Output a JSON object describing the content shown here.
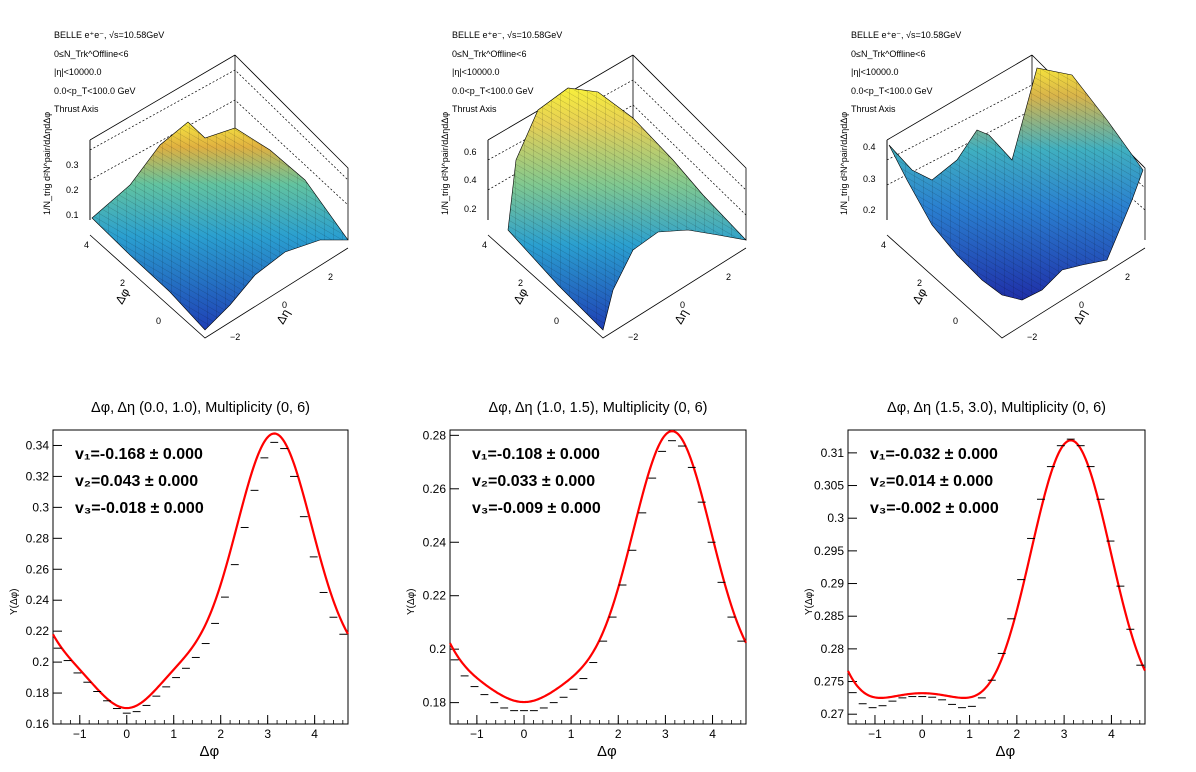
{
  "colors": {
    "fit_line": "#ff0000",
    "points": "#000000",
    "surface_low": "#2a3fb8",
    "surface_high": "#f5ef3a"
  },
  "surfaces": [
    {
      "info": [
        "BELLE e⁺e⁻, √s=10.58GeV",
        "0≤N_Trk^Offline<6",
        "|η|<10000.0",
        "0.0<p_T<100.0 GeV",
        "Thrust Axis"
      ],
      "zlabel": "1/N_trig d²N^pair/dΔηdΔφ",
      "zticks": [
        "0.1",
        "0.2",
        "0.3"
      ],
      "phi_label": "Δφ",
      "phi_ticks": [
        "0",
        "2",
        "4"
      ],
      "eta_label": "Δη",
      "eta_ticks": [
        "−2",
        "0",
        "2"
      ]
    },
    {
      "info": [
        "BELLE e⁺e⁻, √s=10.58GeV",
        "0≤N_Trk^Offline<6",
        "|η|<10000.0",
        "0.0<p_T<100.0 GeV",
        "Thrust Axis"
      ],
      "zlabel": "1/N_trig d²N^pair/dΔηdΔφ",
      "zticks": [
        "0.2",
        "0.4",
        "0.6"
      ],
      "phi_label": "Δφ",
      "phi_ticks": [
        "0",
        "2",
        "4"
      ],
      "eta_label": "Δη",
      "eta_ticks": [
        "−2",
        "0",
        "2"
      ]
    },
    {
      "info": [
        "BELLE e⁺e⁻, √s=10.58GeV",
        "0≤N_Trk^Offline<6",
        "|η|<10000.0",
        "0.0<p_T<100.0 GeV",
        "Thrust Axis"
      ],
      "zlabel": "1/N_trig d²N^pair/dΔηdΔφ",
      "zticks": [
        "0.2",
        "0.3",
        "0.4"
      ],
      "phi_label": "Δφ",
      "phi_ticks": [
        "0",
        "2",
        "4"
      ],
      "eta_label": "Δη",
      "eta_ticks": [
        "−2",
        "0",
        "2"
      ]
    }
  ],
  "chart_data": [
    {
      "type": "line",
      "title": "Δφ, Δη (0.0, 1.0), Multiplicity (0, 6)",
      "xlabel": "Δφ",
      "ylabel": "Y(Δφ)",
      "xlim": [
        -1.57,
        4.71
      ],
      "ylim": [
        0.16,
        0.35
      ],
      "xticks": [
        -1,
        0,
        1,
        2,
        3,
        4
      ],
      "yticks": [
        0.16,
        0.18,
        0.2,
        0.22,
        0.24,
        0.26,
        0.28,
        0.3,
        0.32,
        0.34
      ],
      "fit": {
        "a0": 0.2385,
        "v1": -0.168,
        "v2": 0.043,
        "v3": -0.018
      },
      "fit_text": [
        "v₁=-0.168 ± 0.000",
        "v₂=0.043 ± 0.000",
        "v₃=-0.018 ± 0.000"
      ],
      "series": [
        {
          "name": "",
          "x": [
            -1.47,
            -1.26,
            -1.05,
            -0.84,
            -0.63,
            -0.42,
            -0.21,
            0.0,
            0.21,
            0.42,
            0.63,
            0.84,
            1.05,
            1.26,
            1.47,
            1.68,
            1.88,
            2.09,
            2.3,
            2.51,
            2.72,
            2.93,
            3.14,
            3.35,
            3.56,
            3.77,
            3.98,
            4.19,
            4.4,
            4.61
          ],
          "y": [
            0.209,
            0.201,
            0.193,
            0.187,
            0.181,
            0.175,
            0.17,
            0.167,
            0.168,
            0.172,
            0.178,
            0.184,
            0.19,
            0.196,
            0.203,
            0.212,
            0.225,
            0.242,
            0.263,
            0.287,
            0.311,
            0.332,
            0.342,
            0.338,
            0.32,
            0.294,
            0.268,
            0.245,
            0.229,
            0.218
          ]
        }
      ]
    },
    {
      "type": "line",
      "title": "Δφ, Δη (1.0, 1.5), Multiplicity (0, 6)",
      "xlabel": "Δφ",
      "ylabel": "Y(Δφ)",
      "xlim": [
        -1.57,
        4.71
      ],
      "ylim": [
        0.172,
        0.282
      ],
      "xticks": [
        -1,
        0,
        1,
        2,
        3,
        4
      ],
      "yticks": [
        0.18,
        0.2,
        0.22,
        0.24,
        0.26,
        0.28
      ],
      "fit": {
        "a0": 0.2166,
        "v1": -0.108,
        "v2": 0.033,
        "v3": -0.009
      },
      "fit_text": [
        "v₁=-0.108 ± 0.000",
        "v₂=0.033 ± 0.000",
        "v₃=-0.009 ± 0.000"
      ],
      "series": [
        {
          "name": "",
          "x": [
            -1.47,
            -1.26,
            -1.05,
            -0.84,
            -0.63,
            -0.42,
            -0.21,
            0.0,
            0.21,
            0.42,
            0.63,
            0.84,
            1.05,
            1.26,
            1.47,
            1.68,
            1.88,
            2.09,
            2.3,
            2.51,
            2.72,
            2.93,
            3.14,
            3.35,
            3.56,
            3.77,
            3.98,
            4.19,
            4.4,
            4.61
          ],
          "y": [
            0.196,
            0.19,
            0.186,
            0.183,
            0.18,
            0.178,
            0.177,
            0.177,
            0.177,
            0.178,
            0.18,
            0.182,
            0.185,
            0.189,
            0.195,
            0.203,
            0.212,
            0.224,
            0.237,
            0.251,
            0.264,
            0.274,
            0.278,
            0.276,
            0.268,
            0.255,
            0.24,
            0.225,
            0.212,
            0.203
          ]
        }
      ]
    },
    {
      "type": "line",
      "title": "Δφ, Δη (1.5, 3.0), Multiplicity (0, 6)",
      "xlabel": "Δφ",
      "ylabel": "Y(Δφ)",
      "xlim": [
        -1.57,
        4.71
      ],
      "ylim": [
        0.2685,
        0.3135
      ],
      "xticks": [
        -1,
        0,
        1,
        2,
        3,
        4
      ],
      "yticks": [
        0.27,
        0.275,
        0.28,
        0.285,
        0.29,
        0.295,
        0.3,
        0.305,
        0.31
      ],
      "fit": {
        "a0": 0.2846,
        "v1": -0.032,
        "v2": 0.014,
        "v3": -0.002
      },
      "fit_text": [
        "v₁=-0.032 ± 0.000",
        "v₂=0.014 ± 0.000",
        "v₃=-0.002 ± 0.000"
      ],
      "series": [
        {
          "name": "",
          "x": [
            -1.47,
            -1.26,
            -1.05,
            -0.84,
            -0.63,
            -0.42,
            -0.21,
            0.0,
            0.21,
            0.42,
            0.63,
            0.84,
            1.05,
            1.26,
            1.47,
            1.68,
            1.88,
            2.09,
            2.3,
            2.51,
            2.72,
            2.93,
            3.14,
            3.35,
            3.56,
            3.77,
            3.98,
            4.19,
            4.4,
            4.61
          ],
          "y": [
            0.2733,
            0.2716,
            0.271,
            0.2713,
            0.272,
            0.2725,
            0.2727,
            0.2727,
            0.2726,
            0.2722,
            0.2715,
            0.271,
            0.2712,
            0.2725,
            0.2752,
            0.2793,
            0.2846,
            0.2906,
            0.2969,
            0.3029,
            0.3079,
            0.3111,
            0.3121,
            0.3111,
            0.3079,
            0.3029,
            0.2965,
            0.2896,
            0.283,
            0.2775
          ]
        }
      ]
    }
  ]
}
